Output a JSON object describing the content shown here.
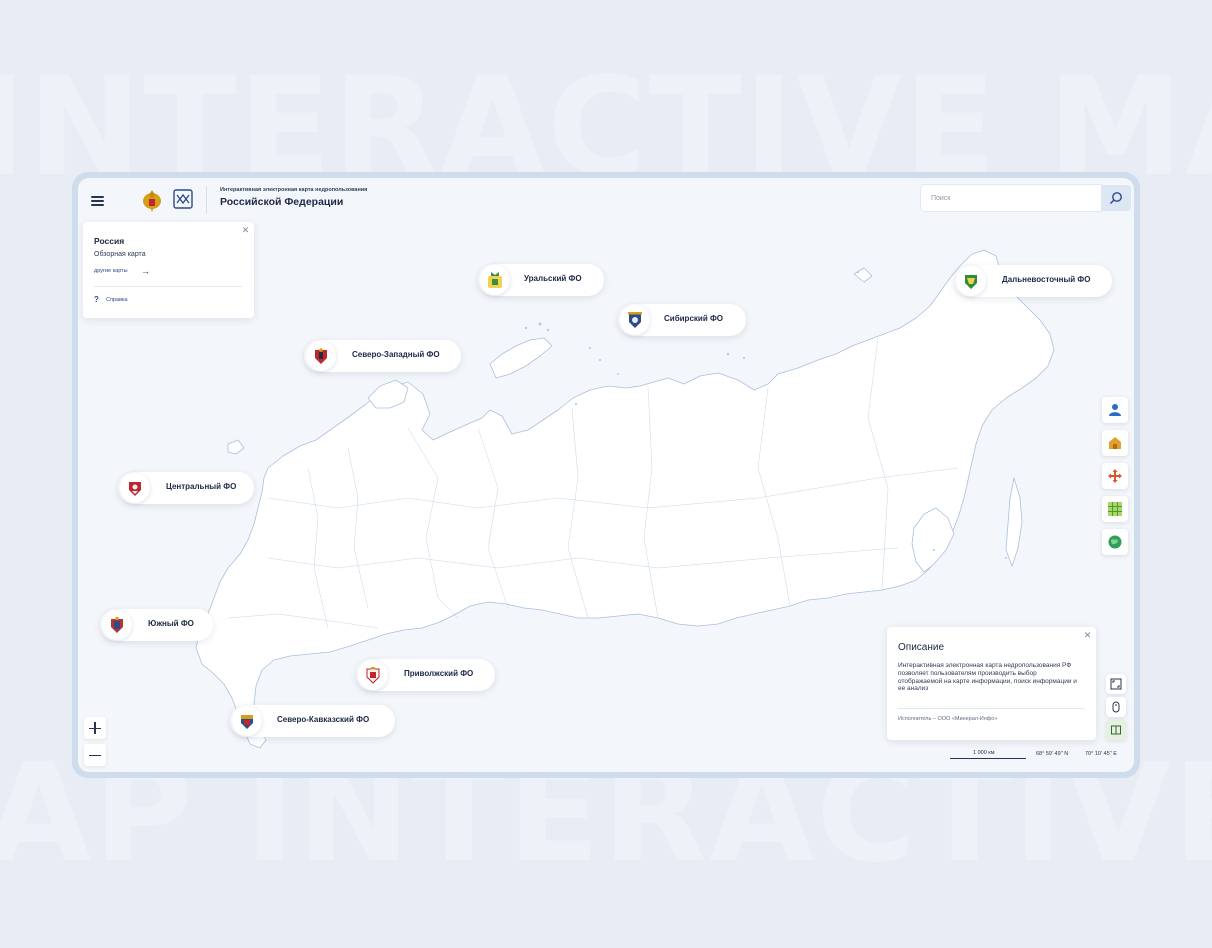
{
  "background": {
    "text_top": "INTERACTIVE MAP",
    "text_bottom": "AP INTERACTIVE"
  },
  "header": {
    "subtitle": "Интерактивная электронная карта недропользования",
    "title": "Российской Федерации",
    "search_placeholder": "Поиск"
  },
  "info_panel": {
    "title": "Россия",
    "subtitle": "Обзорная карта",
    "link": "другие карты",
    "help_label": "Справка"
  },
  "districts": [
    {
      "label": "Уральский ФО",
      "emblem_color": "#3a8f3d"
    },
    {
      "label": "Сибирский ФО",
      "emblem_color": "#2c4a8c"
    },
    {
      "label": "Дальневосточный ФО",
      "emblem_color": "#2e8b3a"
    },
    {
      "label": "Северо-Западный ФО",
      "emblem_color": "#c0262d"
    },
    {
      "label": "Центральный ФО",
      "emblem_color": "#c0262d"
    },
    {
      "label": "Южный ФО",
      "emblem_color": "#b8332c"
    },
    {
      "label": "Приволжский ФО",
      "emblem_color": "#c0262d"
    },
    {
      "label": "Северо-Кавказский ФО",
      "emblem_color": "#d4a017"
    }
  ],
  "tools": [
    "user-icon",
    "building-icon",
    "move-icon",
    "grid-icon",
    "globe-icon",
    "fullscreen-icon",
    "mouse-icon",
    "layers-icon"
  ],
  "description": {
    "title": "Описание",
    "text": "Интерактивная электронная карта недропользования РФ позволяет пользователям производить выбор отображаемой на карте информации, поиск информации и ее анализ",
    "author": "Исполнитель – ООО «Минерал-Инфо»"
  },
  "scale": {
    "label": "1 000 км"
  },
  "coordinates": {
    "lat": "68° 59' 49'' N",
    "lon": "70° 10' 45'' E"
  },
  "colors": {
    "accent": "#2c4a8c",
    "frame": "#cfdcec",
    "map_fill": "#ffffff",
    "map_stroke": "#a9c0dc"
  }
}
